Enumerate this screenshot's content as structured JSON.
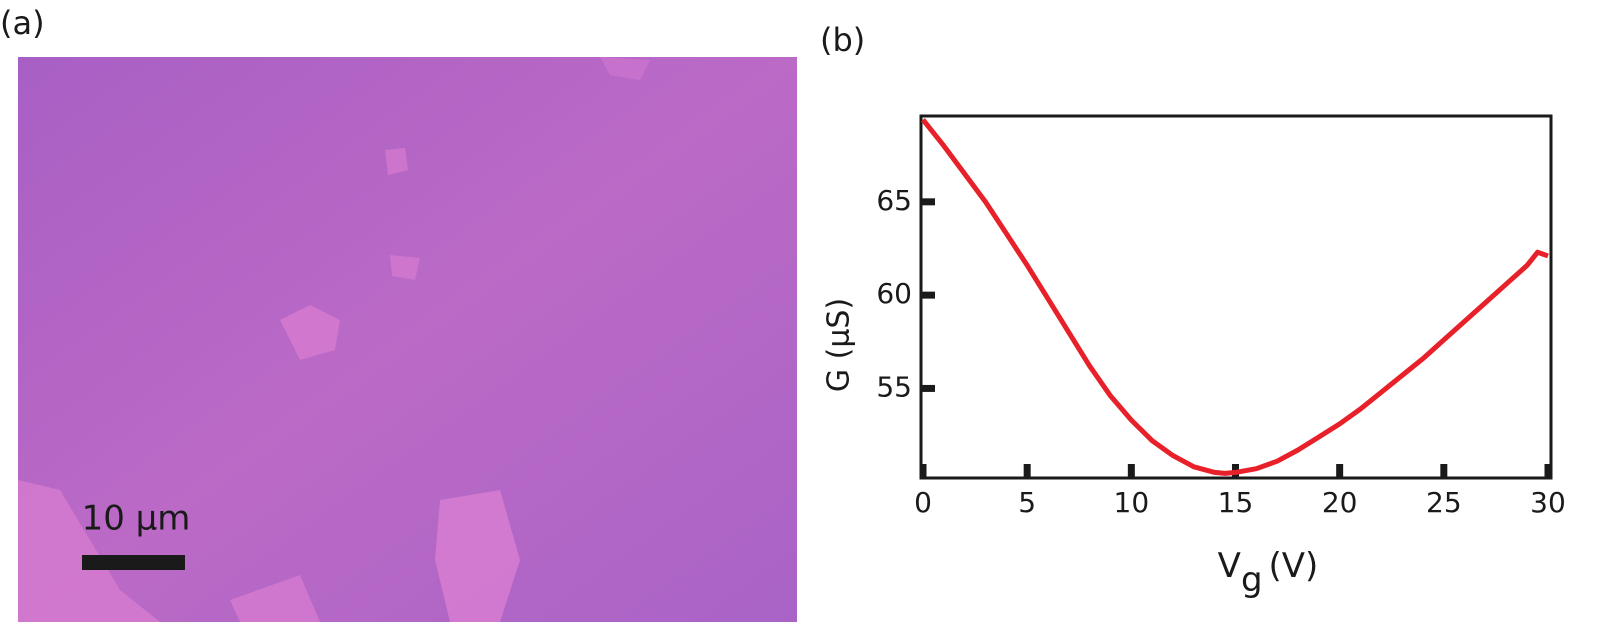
{
  "panel_a": {
    "label": "(a)",
    "scale_bar_label": "10 µm"
  },
  "chart_data": {
    "type": "line",
    "panel_label": "(b)",
    "y_label": "G (µS)",
    "x_label": {
      "main": "V",
      "subscript": "g",
      "unit": "(V)"
    },
    "x": [
      0,
      1,
      2,
      3,
      4,
      5,
      6,
      7,
      8,
      9,
      10,
      11,
      12,
      13,
      14,
      14.5,
      15,
      16,
      17,
      18,
      19,
      20,
      21,
      22,
      23,
      24,
      25,
      26,
      27,
      28,
      29,
      29.5,
      30
    ],
    "series": [
      {
        "name": "G",
        "color": "#e8202a",
        "values": [
          69.4,
          68.0,
          66.5,
          65.0,
          63.3,
          61.6,
          59.8,
          58.0,
          56.2,
          54.6,
          53.3,
          52.2,
          51.4,
          50.8,
          50.5,
          50.45,
          50.5,
          50.7,
          51.1,
          51.7,
          52.4,
          53.1,
          53.9,
          54.8,
          55.7,
          56.6,
          57.6,
          58.6,
          59.6,
          60.6,
          61.6,
          62.3,
          62.1
        ]
      }
    ],
    "xlim": [
      0,
      30
    ],
    "ylim": [
      50.2,
      69.6
    ],
    "xticks": [
      0,
      5,
      10,
      15,
      20,
      25,
      30
    ],
    "yticks": [
      55,
      60,
      65
    ]
  }
}
